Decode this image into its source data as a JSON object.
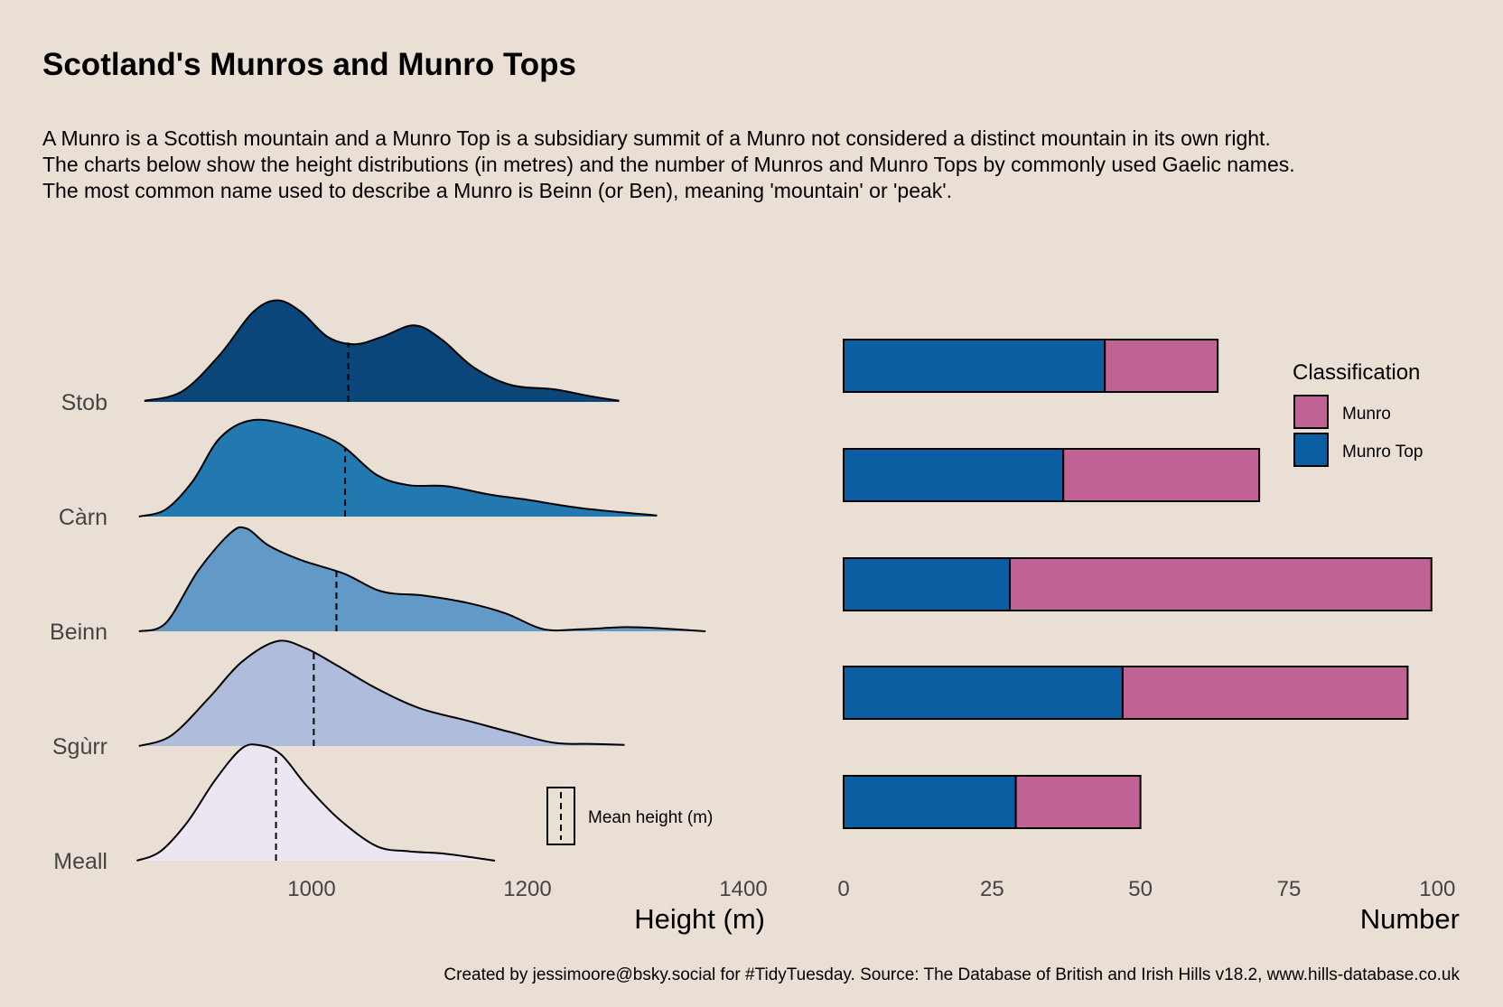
{
  "title": "Scotland's Munros and Munro Tops",
  "subtitle_lines": [
    "A Munro is a Scottish mountain and a Munro Top is a subsidiary summit of a Munro not considered a distinct mountain in its own right.",
    "The charts below show the height distributions (in metres) and the number of Munros and Munro Tops by commonly used Gaelic names.",
    "The most common name used to describe a Munro is Beinn (or Ben), meaning 'mountain' or 'peak'."
  ],
  "caption": "Created by jessimoore@bsky.social for #TidyTuesday. Source: The Database of British and Irish Hills v18.2, www.hills-database.co.uk",
  "chart_data": [
    {
      "type": "area",
      "subtype": "ridgeline-density",
      "xlabel": "Height (m)",
      "xlim": [
        835,
        1420
      ],
      "xticks": [
        1000,
        1200,
        1400
      ],
      "categories": [
        "Stob",
        "Càrn",
        "Beinn",
        "Sgùrr",
        "Meall"
      ],
      "fills": [
        "#0b467b",
        "#2378b0",
        "#6399c6",
        "#b0bcdc",
        "#ebe6f1"
      ],
      "mean_legend_label": "Mean height (m)",
      "series": [
        {
          "name": "Stob",
          "mean": 1034,
          "density": [
            [
              845,
              0.01
            ],
            [
              880,
              0.1
            ],
            [
              915,
              0.45
            ],
            [
              945,
              0.85
            ],
            [
              968,
              0.97
            ],
            [
              990,
              0.86
            ],
            [
              1015,
              0.62
            ],
            [
              1040,
              0.55
            ],
            [
              1065,
              0.62
            ],
            [
              1095,
              0.73
            ],
            [
              1120,
              0.6
            ],
            [
              1150,
              0.33
            ],
            [
              1185,
              0.16
            ],
            [
              1225,
              0.12
            ],
            [
              1255,
              0.06
            ],
            [
              1285,
              0.01
            ]
          ]
        },
        {
          "name": "Càrn",
          "mean": 1031,
          "density": [
            [
              840,
              0
            ],
            [
              865,
              0.07
            ],
            [
              890,
              0.34
            ],
            [
              915,
              0.75
            ],
            [
              945,
              0.92
            ],
            [
              985,
              0.86
            ],
            [
              1025,
              0.7
            ],
            [
              1060,
              0.4
            ],
            [
              1090,
              0.3
            ],
            [
              1125,
              0.29
            ],
            [
              1165,
              0.21
            ],
            [
              1200,
              0.16
            ],
            [
              1250,
              0.08
            ],
            [
              1320,
              0.01
            ]
          ]
        },
        {
          "name": "Beinn",
          "mean": 1023,
          "density": [
            [
              840,
              0
            ],
            [
              865,
              0.08
            ],
            [
              895,
              0.58
            ],
            [
              925,
              0.94
            ],
            [
              940,
              0.98
            ],
            [
              960,
              0.82
            ],
            [
              990,
              0.68
            ],
            [
              1030,
              0.55
            ],
            [
              1065,
              0.38
            ],
            [
              1105,
              0.34
            ],
            [
              1145,
              0.27
            ],
            [
              1180,
              0.17
            ],
            [
              1215,
              0.02
            ],
            [
              1250,
              0.02
            ],
            [
              1290,
              0.04
            ],
            [
              1320,
              0.03
            ],
            [
              1365,
              0
            ]
          ]
        },
        {
          "name": "Sgùrr",
          "mean": 1002,
          "density": [
            [
              840,
              0
            ],
            [
              870,
              0.1
            ],
            [
              905,
              0.46
            ],
            [
              935,
              0.8
            ],
            [
              968,
              1.0
            ],
            [
              995,
              0.93
            ],
            [
              1025,
              0.76
            ],
            [
              1060,
              0.55
            ],
            [
              1100,
              0.36
            ],
            [
              1145,
              0.24
            ],
            [
              1185,
              0.13
            ],
            [
              1225,
              0.03
            ],
            [
              1260,
              0.02
            ],
            [
              1290,
              0.01
            ]
          ]
        },
        {
          "name": "Meall",
          "mean": 967,
          "density": [
            [
              838,
              0
            ],
            [
              860,
              0.09
            ],
            [
              885,
              0.37
            ],
            [
              910,
              0.76
            ],
            [
              935,
              1.07
            ],
            [
              953,
              1.1
            ],
            [
              972,
              1.01
            ],
            [
              995,
              0.72
            ],
            [
              1025,
              0.4
            ],
            [
              1060,
              0.14
            ],
            [
              1090,
              0.09
            ],
            [
              1120,
              0.07
            ],
            [
              1150,
              0.03
            ],
            [
              1170,
              0
            ]
          ]
        }
      ]
    },
    {
      "type": "bar",
      "subtype": "stacked-horizontal",
      "xlabel": "Number",
      "xlim": [
        0,
        100
      ],
      "xticks": [
        0,
        25,
        50,
        75,
        100
      ],
      "categories": [
        "Stob",
        "Càrn",
        "Beinn",
        "Sgùrr",
        "Meall"
      ],
      "legend_title": "Classification",
      "legend_position": "top-right",
      "series": [
        {
          "name": "Munro Top",
          "color": "#0b5ea1",
          "values": [
            44,
            37,
            28,
            47,
            29
          ]
        },
        {
          "name": "Munro",
          "color": "#c06394",
          "values": [
            19,
            33,
            71,
            48,
            21
          ]
        }
      ]
    }
  ]
}
